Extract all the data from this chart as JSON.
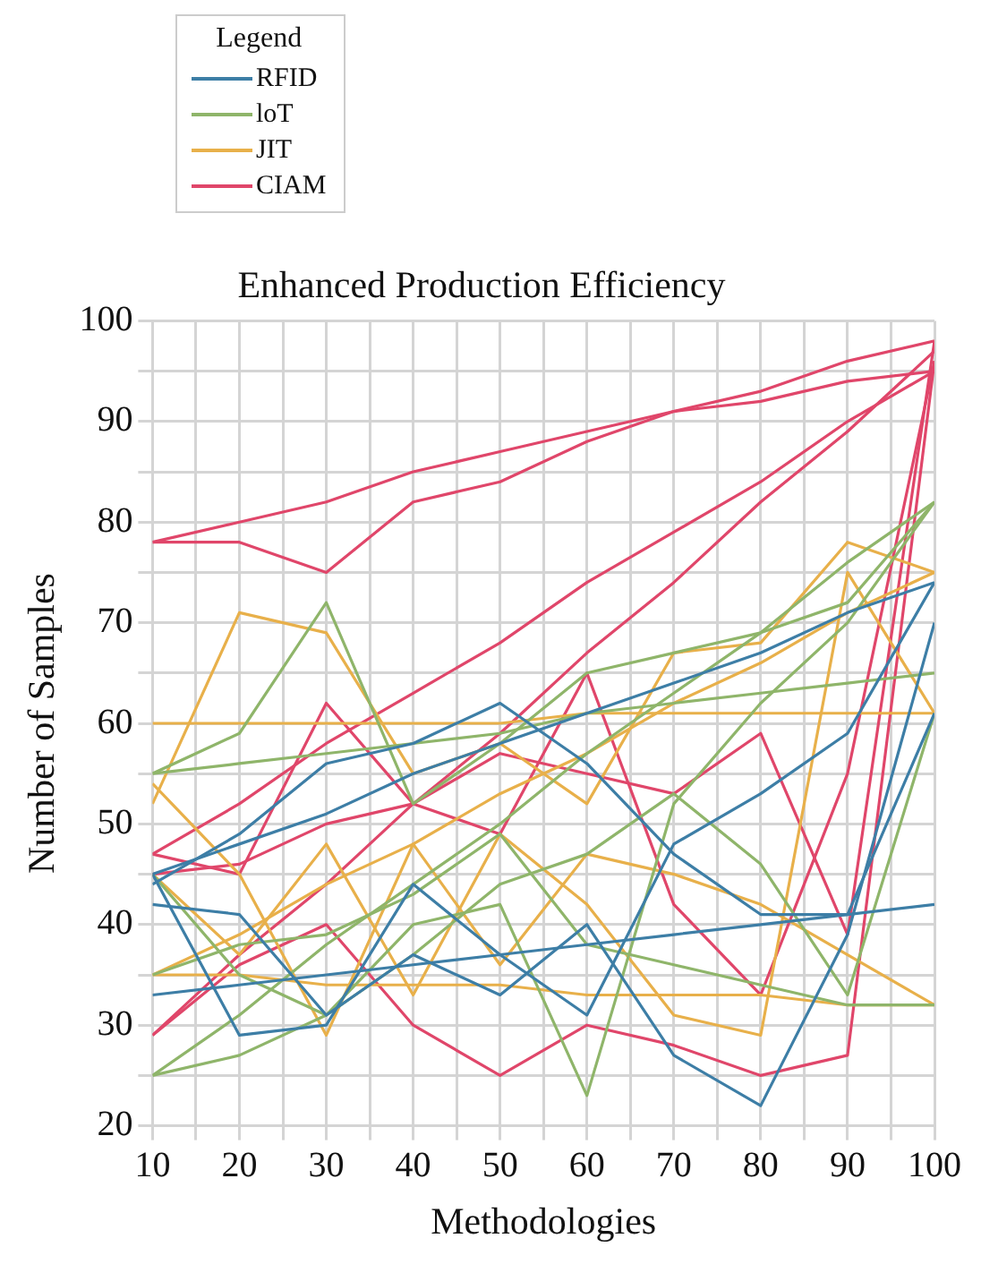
{
  "chart_data": {
    "type": "line",
    "title": "Enhanced Production Efficiency",
    "xlabel": "Methodologies",
    "ylabel": "Number of Samples",
    "legend_title": "Legend",
    "legend": "top left",
    "grid": true,
    "marker": "none",
    "line_style": "solid",
    "x": [
      10,
      20,
      30,
      40,
      50,
      60,
      70,
      80,
      90,
      100
    ],
    "xlim": [
      10,
      100
    ],
    "xticks": [
      10,
      {
        "value": 15,
        "label": null
      },
      20,
      {
        "value": 25,
        "label": null
      },
      30,
      {
        "value": 35,
        "label": null
      },
      40,
      {
        "value": 45,
        "label": null
      },
      50,
      {
        "value": 55,
        "label": null
      },
      60,
      {
        "value": 65,
        "label": null
      },
      70,
      {
        "value": 75,
        "label": null
      },
      80,
      {
        "value": 85,
        "label": null
      },
      90,
      {
        "value": 95,
        "label": null
      },
      100
    ],
    "ylim": [
      20,
      100
    ],
    "yticks": [
      20,
      {
        "value": 25,
        "label": null
      },
      30,
      {
        "value": 35,
        "label": null
      },
      40,
      {
        "value": 45,
        "label": null
      },
      50,
      {
        "value": 55,
        "label": null
      },
      60,
      {
        "value": 65,
        "label": null
      },
      70,
      {
        "value": 75,
        "label": null
      },
      80,
      {
        "value": 85,
        "label": null
      },
      90,
      {
        "value": 95,
        "label": null
      },
      100
    ],
    "series": [
      {
        "name": "RFID",
        "color": "#3d7ea6",
        "values": [
          33,
          34,
          35,
          36,
          37,
          38,
          39,
          40,
          41,
          42
        ]
      },
      {
        "color": "#3d7ea6",
        "values": [
          42,
          41,
          31,
          37,
          33,
          40,
          27,
          22,
          39,
          70
        ]
      },
      {
        "color": "#3d7ea6",
        "values": [
          45,
          29,
          30,
          44,
          37,
          31,
          48,
          53,
          59,
          74
        ]
      },
      {
        "color": "#3d7ea6",
        "values": [
          44,
          49,
          56,
          58,
          62,
          56,
          47,
          41,
          41,
          61
        ]
      },
      {
        "color": "#3d7ea6",
        "values": [
          45,
          48,
          51,
          55,
          58,
          61,
          64,
          67,
          71,
          74
        ]
      },
      {
        "name": "loT",
        "color": "#8fb56a",
        "values": [
          25,
          27,
          31,
          40,
          42,
          23,
          52,
          62,
          70,
          82
        ]
      },
      {
        "color": "#8fb56a",
        "values": [
          55,
          59,
          72,
          52,
          58,
          65,
          67,
          69,
          72,
          82
        ]
      },
      {
        "color": "#8fb56a",
        "values": [
          35,
          38,
          39,
          43,
          49,
          38,
          36,
          34,
          32,
          32
        ]
      },
      {
        "color": "#8fb56a",
        "values": [
          55,
          56,
          57,
          58,
          59,
          61,
          62,
          63,
          64,
          65
        ]
      },
      {
        "color": "#8fb56a",
        "values": [
          45,
          35,
          31,
          37,
          44,
          47,
          53,
          46,
          33,
          61
        ]
      },
      {
        "color": "#8fb56a",
        "values": [
          25,
          31,
          38,
          44,
          50,
          57,
          63,
          69,
          76,
          82
        ]
      },
      {
        "name": "JIT",
        "color": "#e8b04a",
        "values": [
          60,
          60,
          60,
          60,
          60,
          61,
          61,
          61,
          61,
          61
        ]
      },
      {
        "color": "#e8b04a",
        "values": [
          35,
          35,
          34,
          34,
          34,
          33,
          33,
          33,
          32,
          32
        ]
      },
      {
        "color": "#e8b04a",
        "values": [
          52,
          71,
          69,
          55,
          58,
          52,
          67,
          68,
          78,
          75
        ]
      },
      {
        "color": "#e8b04a",
        "values": [
          54,
          45,
          29,
          48,
          36,
          47,
          45,
          42,
          37,
          32
        ]
      },
      {
        "color": "#e8b04a",
        "values": [
          45,
          37,
          48,
          33,
          49,
          42,
          31,
          29,
          75,
          61
        ]
      },
      {
        "color": "#e8b04a",
        "values": [
          35,
          39,
          44,
          48,
          53,
          57,
          62,
          66,
          71,
          75
        ]
      },
      {
        "name": "CIAM",
        "color": "#e0466a",
        "values": [
          78,
          80,
          82,
          85,
          87,
          89,
          91,
          93,
          96,
          98
        ]
      },
      {
        "color": "#e0466a",
        "values": [
          78,
          78,
          75,
          82,
          84,
          88,
          91,
          92,
          94,
          95
        ]
      },
      {
        "color": "#e0466a",
        "values": [
          47,
          52,
          58,
          63,
          68,
          74,
          79,
          84,
          90,
          95
        ]
      },
      {
        "color": "#e0466a",
        "values": [
          29,
          36,
          40,
          30,
          25,
          30,
          28,
          25,
          27,
          96
        ]
      },
      {
        "color": "#e0466a",
        "values": [
          47,
          45,
          62,
          52,
          49,
          65,
          42,
          33,
          55,
          96
        ]
      },
      {
        "color": "#e0466a",
        "values": [
          45,
          46,
          50,
          52,
          57,
          55,
          53,
          59,
          39,
          98
        ]
      },
      {
        "color": "#e0466a",
        "values": [
          29,
          37,
          44,
          52,
          59,
          67,
          74,
          82,
          89,
          97
        ]
      }
    ]
  }
}
